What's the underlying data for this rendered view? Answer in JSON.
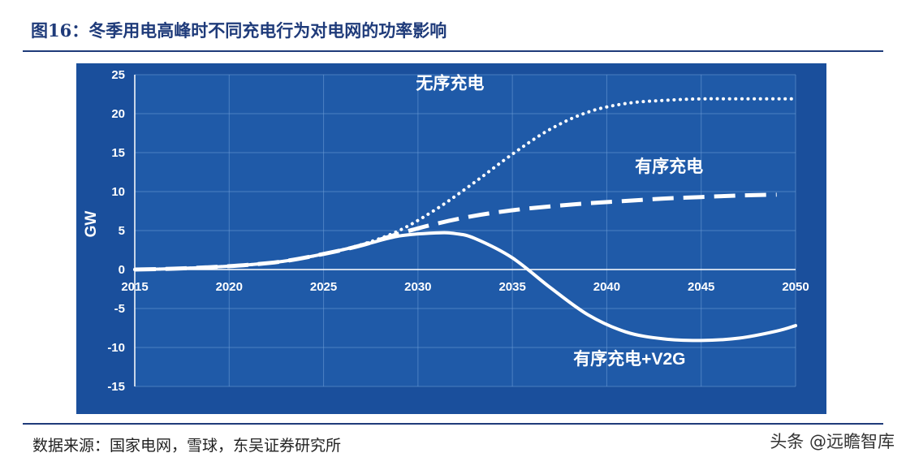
{
  "header": {
    "figure_title": "图16：冬季用电高峰时不同充电行为对电网的功率影响"
  },
  "footer": {
    "source": "数据来源：国家电网，雪球，东吴证券研究所",
    "watermark": "头条 @远瞻智库"
  },
  "chart_data": {
    "type": "line",
    "title": "",
    "xlabel": "",
    "ylabel": "GW",
    "xlim": [
      2015,
      2050
    ],
    "ylim": [
      -15,
      25
    ],
    "x_ticks": [
      2015,
      2020,
      2025,
      2030,
      2035,
      2040,
      2045,
      2050
    ],
    "y_ticks": [
      25,
      20,
      15,
      10,
      5,
      0,
      -5,
      -10,
      -15
    ],
    "grid": true,
    "background_color": "#1a4f9c",
    "plot_color": "#1f5aa8",
    "grid_color": "#6f9fd8",
    "line_color": "#ffffff",
    "series": [
      {
        "name": "无序充电",
        "style": "dotted",
        "x": [
          2015,
          2017,
          2019,
          2021,
          2023,
          2025,
          2027,
          2029,
          2031,
          2033,
          2035,
          2037,
          2039,
          2041,
          2043,
          2045,
          2047,
          2050
        ],
        "y": [
          0,
          0.1,
          0.3,
          0.6,
          1.1,
          2.0,
          3.2,
          5.0,
          7.8,
          11.2,
          14.8,
          18.0,
          20.2,
          21.3,
          21.7,
          21.9,
          21.9,
          21.9
        ]
      },
      {
        "name": "有序充电",
        "style": "dashed",
        "x": [
          2015,
          2017,
          2019,
          2021,
          2023,
          2025,
          2027,
          2029,
          2031,
          2033,
          2035,
          2037,
          2039,
          2041,
          2043,
          2045,
          2047,
          2049
        ],
        "y": [
          0,
          0.1,
          0.3,
          0.6,
          1.1,
          2.0,
          3.1,
          4.6,
          5.9,
          6.9,
          7.6,
          8.1,
          8.5,
          8.8,
          9.1,
          9.3,
          9.5,
          9.6
        ]
      },
      {
        "name": "有序充电+V2G",
        "style": "solid",
        "x": [
          2015,
          2017,
          2019,
          2021,
          2023,
          2025,
          2027,
          2029,
          2031,
          2032,
          2033,
          2035,
          2037,
          2039,
          2041,
          2043,
          2045,
          2047,
          2049,
          2050
        ],
        "y": [
          0,
          0.1,
          0.3,
          0.6,
          1.1,
          2.0,
          3.1,
          4.3,
          4.7,
          4.6,
          4.0,
          1.5,
          -2.3,
          -5.8,
          -8.0,
          -8.9,
          -9.1,
          -8.8,
          -7.9,
          -7.2
        ]
      }
    ],
    "annotations": [
      {
        "series": "无序充电",
        "text": "无序充电",
        "x": 2031.7,
        "y": 23.2
      },
      {
        "series": "有序充电",
        "text": "有序充电",
        "x": 2043.3,
        "y": 12.5
      },
      {
        "series": "有序充电+V2G",
        "text": "有序充电+V2G",
        "x": 2041.2,
        "y": -12.2
      }
    ]
  }
}
